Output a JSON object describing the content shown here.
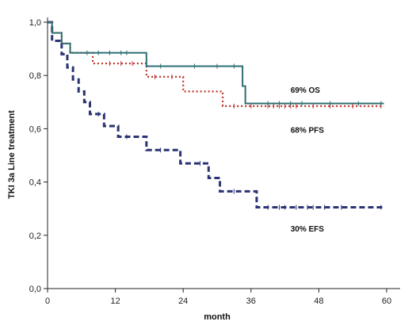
{
  "chart_data": {
    "type": "line",
    "title": "",
    "xlabel": "month",
    "ylabel": "TKI 3a Line treatment",
    "xlim": [
      0,
      60
    ],
    "ylim": [
      0,
      1
    ],
    "x_ticks": [
      0,
      12,
      24,
      36,
      48,
      60
    ],
    "x_tick_labels": [
      "0",
      "12",
      "24",
      "36",
      "48",
      "60"
    ],
    "y_ticks": [
      0,
      0.2,
      0.4,
      0.6,
      0.8,
      1.0
    ],
    "y_tick_labels": [
      "0,0",
      "0,2",
      "0,4",
      "0,6",
      "0,8",
      "1,0"
    ],
    "grid": false,
    "series": [
      {
        "color": "#2e6f73",
        "dash": "solid",
        "label": "69% OS",
        "label_pos": [
          43,
          0.735
        ],
        "steps": [
          [
            0,
            1.0
          ],
          [
            0.8,
            0.96
          ],
          [
            2.5,
            0.92
          ],
          [
            4,
            0.885
          ],
          [
            17.5,
            0.835
          ],
          [
            34.5,
            0.76
          ],
          [
            35,
            0.695
          ],
          [
            59.5,
            0.695
          ]
        ],
        "censor_x": [
          7,
          9,
          11,
          13,
          14,
          20,
          26,
          30,
          33,
          39,
          41,
          43,
          45,
          50,
          55,
          59
        ]
      },
      {
        "color": "#c0302a",
        "dash": "dotted",
        "label": "68% PFS",
        "label_pos": [
          43,
          0.585
        ],
        "steps": [
          [
            0,
            1.0
          ],
          [
            0.8,
            0.96
          ],
          [
            2.5,
            0.92
          ],
          [
            4,
            0.885
          ],
          [
            8,
            0.845
          ],
          [
            17.5,
            0.795
          ],
          [
            24,
            0.74
          ],
          [
            31,
            0.685
          ],
          [
            59.5,
            0.685
          ]
        ],
        "censor_x": [
          11,
          13,
          15,
          19,
          22,
          33,
          36,
          39,
          40,
          41,
          42,
          43,
          44,
          47,
          50,
          54,
          59
        ]
      },
      {
        "color": "#2b3372",
        "dash": "dashed",
        "label": "30% EFS",
        "label_pos": [
          43,
          0.215
        ],
        "steps": [
          [
            0,
            1.0
          ],
          [
            0.8,
            0.93
          ],
          [
            2.5,
            0.88
          ],
          [
            3.5,
            0.83
          ],
          [
            4.5,
            0.785
          ],
          [
            5.5,
            0.74
          ],
          [
            6.5,
            0.7
          ],
          [
            7.5,
            0.655
          ],
          [
            10,
            0.61
          ],
          [
            12.5,
            0.57
          ],
          [
            17.5,
            0.52
          ],
          [
            23.5,
            0.47
          ],
          [
            28.5,
            0.415
          ],
          [
            30.5,
            0.365
          ],
          [
            37,
            0.305
          ],
          [
            59.5,
            0.305
          ]
        ],
        "censor_x": [
          9,
          14,
          20,
          27,
          33,
          39,
          41,
          42,
          44,
          46,
          47,
          49,
          52,
          59
        ]
      }
    ]
  }
}
